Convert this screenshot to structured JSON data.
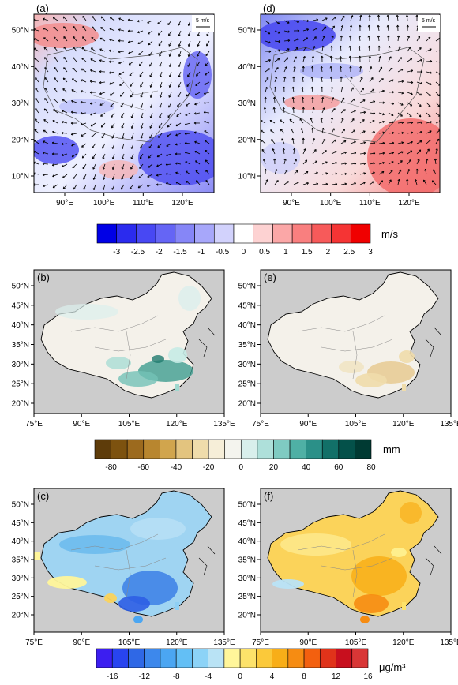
{
  "panels": {
    "a": {
      "label": "(a)",
      "ref_vector": "5 m/s",
      "y_ticks": [
        "50°N",
        "40°N",
        "30°N",
        "20°N",
        "10°N"
      ],
      "x_ticks": [
        "90°E",
        "100°E",
        "110°E",
        "120°E"
      ]
    },
    "d": {
      "label": "(d)",
      "ref_vector": "5 m/s",
      "y_ticks": [
        "50°N",
        "40°N",
        "30°N",
        "20°N",
        "10°N"
      ],
      "x_ticks": [
        "90°E",
        "100°E",
        "110°E",
        "120°E"
      ]
    },
    "b": {
      "label": "(b)",
      "y_ticks": [
        "50°N",
        "45°N",
        "40°N",
        "35°N",
        "30°N",
        "25°N",
        "20°N"
      ],
      "x_ticks": [
        "75°E",
        "90°E",
        "105°E",
        "120°E",
        "135°E"
      ]
    },
    "e": {
      "label": "(e)",
      "y_ticks": [
        "50°N",
        "45°N",
        "40°N",
        "35°N",
        "30°N",
        "25°N",
        "20°N"
      ],
      "x_ticks": [
        "75°E",
        "90°E",
        "105°E",
        "120°E",
        "135°E"
      ]
    },
    "c": {
      "label": "(c)",
      "y_ticks": [
        "50°N",
        "45°N",
        "40°N",
        "35°N",
        "30°N",
        "25°N",
        "20°N"
      ],
      "x_ticks": [
        "75°E",
        "90°E",
        "105°E",
        "120°E",
        "135°E"
      ]
    },
    "f": {
      "label": "(f)",
      "y_ticks": [
        "50°N",
        "45°N",
        "40°N",
        "35°N",
        "30°N",
        "25°N",
        "20°N"
      ],
      "x_ticks": [
        "75°E",
        "90°E",
        "105°E",
        "120°E",
        "135°E"
      ]
    }
  },
  "colorbars": {
    "wind": {
      "unit": "m/s",
      "ticks": [
        "-3",
        "-2.5",
        "-2",
        "-1.5",
        "-1",
        "-0.5",
        "0",
        "0.5",
        "1",
        "1.5",
        "2",
        "2.5",
        "3"
      ],
      "colors": [
        "#0000e6",
        "#2b2bee",
        "#4848f3",
        "#6565f5",
        "#8686f7",
        "#a7a7fa",
        "#d2d2fc",
        "#ffffff",
        "#fdd2d2",
        "#fba7a7",
        "#f97f7f",
        "#f75a5a",
        "#f53434",
        "#f00000"
      ]
    },
    "precip": {
      "unit": "mm",
      "ticks": [
        "-80",
        "-60",
        "-40",
        "-20",
        "0",
        "20",
        "40",
        "60",
        "80"
      ],
      "colors": [
        "#5e3c0a",
        "#7d520f",
        "#9c6a1e",
        "#b8862f",
        "#d1a54d",
        "#e3c47f",
        "#efdcab",
        "#f6eed8",
        "#f4f4ee",
        "#d8efec",
        "#aee0da",
        "#7fcbc2",
        "#4fb0a5",
        "#2b9088",
        "#127068",
        "#04514a",
        "#003a33"
      ]
    },
    "pm": {
      "unit": "μg/m³",
      "ticks": [
        "-16",
        "-12",
        "-8",
        "-4",
        "0",
        "4",
        "8",
        "12",
        "16"
      ],
      "colors": [
        "#3c1ef0",
        "#2844f0",
        "#2f68e6",
        "#3d88ec",
        "#4ba6f2",
        "#63bff5",
        "#8cd3f7",
        "#b9e3f5",
        "#fff69a",
        "#fde26a",
        "#fbc93a",
        "#f8ae18",
        "#f68c12",
        "#f3600f",
        "#e0331a",
        "#c80f1e",
        "#d93636"
      ]
    }
  }
}
